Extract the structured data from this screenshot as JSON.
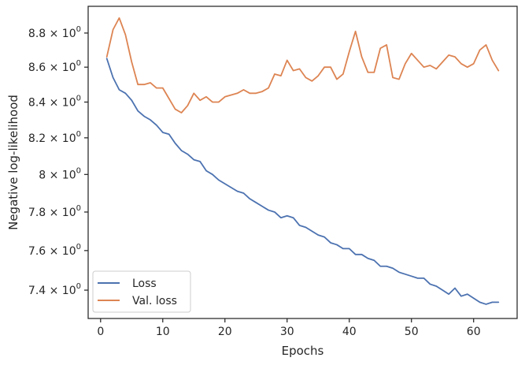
{
  "chart_data": {
    "type": "line",
    "title": "",
    "xlabel": "Epochs",
    "ylabel": "Negative log-likelihood",
    "xlim": [
      -2,
      67
    ],
    "ylim": [
      7.26,
      8.96
    ],
    "yscale": "log",
    "grid": false,
    "legend_position": "lower-left",
    "x_ticks": [
      0,
      10,
      20,
      30,
      40,
      50,
      60
    ],
    "x_tick_labels": [
      "0",
      "10",
      "20",
      "30",
      "40",
      "50",
      "60"
    ],
    "y_ticks": [
      7.4,
      7.6,
      7.8,
      8.0,
      8.2,
      8.4,
      8.6,
      8.8
    ],
    "y_tick_labels": [
      {
        "mantissa": "7.4",
        "base": "10",
        "exp": "0"
      },
      {
        "mantissa": "7.6",
        "base": "10",
        "exp": "0"
      },
      {
        "mantissa": "7.8",
        "base": "10",
        "exp": "0"
      },
      {
        "mantissa": "8",
        "base": "10",
        "exp": "0"
      },
      {
        "mantissa": "8.2",
        "base": "10",
        "exp": "0"
      },
      {
        "mantissa": "8.4",
        "base": "10",
        "exp": "0"
      },
      {
        "mantissa": "8.6",
        "base": "10",
        "exp": "0"
      },
      {
        "mantissa": "8.8",
        "base": "10",
        "exp": "0"
      }
    ],
    "x": [
      1,
      2,
      3,
      4,
      5,
      6,
      7,
      8,
      9,
      10,
      11,
      12,
      13,
      14,
      15,
      16,
      17,
      18,
      19,
      20,
      21,
      22,
      23,
      24,
      25,
      26,
      27,
      28,
      29,
      30,
      31,
      32,
      33,
      34,
      35,
      36,
      37,
      38,
      39,
      40,
      41,
      42,
      43,
      44,
      45,
      46,
      47,
      48,
      49,
      50,
      51,
      52,
      53,
      54,
      55,
      56,
      57,
      58,
      59,
      60,
      61,
      62,
      63,
      64
    ],
    "series": [
      {
        "name": "Loss",
        "color": "#4c72b0",
        "values": [
          8.65,
          8.54,
          8.47,
          8.45,
          8.41,
          8.35,
          8.32,
          8.3,
          8.27,
          8.23,
          8.22,
          8.17,
          8.13,
          8.11,
          8.08,
          8.07,
          8.02,
          8.0,
          7.97,
          7.95,
          7.93,
          7.91,
          7.9,
          7.87,
          7.85,
          7.83,
          7.81,
          7.8,
          7.77,
          7.78,
          7.77,
          7.73,
          7.72,
          7.7,
          7.68,
          7.67,
          7.64,
          7.63,
          7.61,
          7.61,
          7.58,
          7.58,
          7.56,
          7.55,
          7.52,
          7.52,
          7.51,
          7.49,
          7.48,
          7.47,
          7.46,
          7.46,
          7.43,
          7.42,
          7.4,
          7.38,
          7.41,
          7.37,
          7.38,
          7.36,
          7.34,
          7.33,
          7.34,
          7.34
        ]
      },
      {
        "name": "Val. loss",
        "color": "#dd8452",
        "values": [
          8.66,
          8.82,
          8.89,
          8.79,
          8.63,
          8.5,
          8.5,
          8.51,
          8.48,
          8.48,
          8.42,
          8.36,
          8.34,
          8.38,
          8.45,
          8.41,
          8.43,
          8.4,
          8.4,
          8.43,
          8.44,
          8.45,
          8.47,
          8.45,
          8.45,
          8.46,
          8.48,
          8.56,
          8.55,
          8.64,
          8.58,
          8.59,
          8.54,
          8.52,
          8.55,
          8.6,
          8.6,
          8.53,
          8.56,
          8.69,
          8.81,
          8.66,
          8.57,
          8.57,
          8.71,
          8.73,
          8.54,
          8.53,
          8.62,
          8.68,
          8.64,
          8.6,
          8.61,
          8.59,
          8.63,
          8.67,
          8.66,
          8.62,
          8.6,
          8.62,
          8.7,
          8.73,
          8.64,
          8.58
        ]
      }
    ]
  }
}
